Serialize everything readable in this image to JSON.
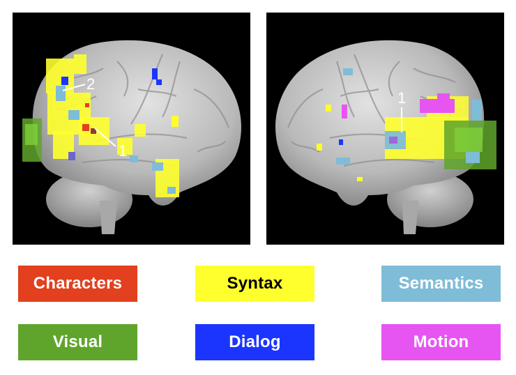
{
  "figure": {
    "left_labels": [
      "2",
      "1"
    ],
    "right_labels": [
      "1"
    ]
  },
  "legend": [
    {
      "label": "Characters",
      "color": "#e2401e",
      "text_color": "#ffffff"
    },
    {
      "label": "Syntax",
      "color": "#ffff2e",
      "text_color": "#000000"
    },
    {
      "label": "Semantics",
      "color": "#7fbcd8",
      "text_color": "#ffffff"
    },
    {
      "label": "Visual",
      "color": "#5fa52c",
      "text_color": "#ffffff"
    },
    {
      "label": "Dialog",
      "color": "#1b35ff",
      "text_color": "#ffffff"
    },
    {
      "label": "Motion",
      "color": "#e655f2",
      "text_color": "#ffffff"
    }
  ]
}
